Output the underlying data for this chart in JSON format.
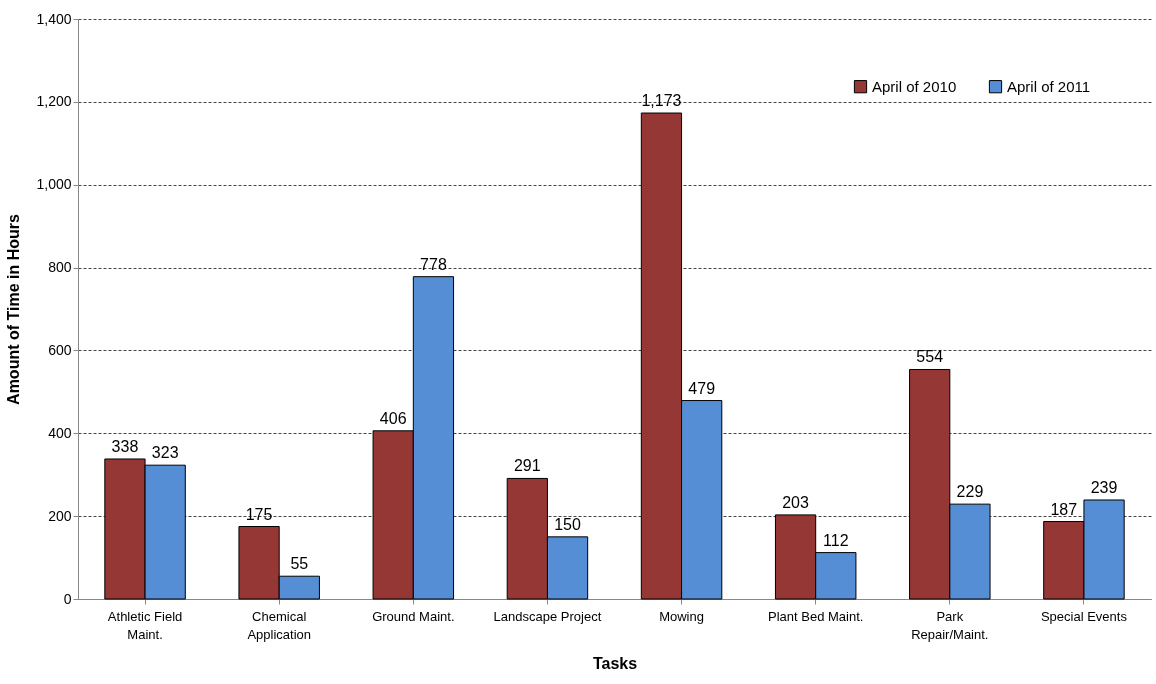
{
  "chart_data": {
    "type": "bar",
    "xlabel": "Tasks",
    "ylabel": "Amount of Time in Hours",
    "categories": [
      "Athletic Field Maint.",
      "Chemical Application",
      "Ground Maint.",
      "Landscape Project",
      "Mowing",
      "Plant Bed Maint.",
      "Park Repair/Maint.",
      "Special Events"
    ],
    "series": [
      {
        "name": "April of 2010",
        "color": "#953735",
        "values": [
          338,
          175,
          406,
          291,
          1173,
          203,
          554,
          187
        ],
        "value_labels": [
          "338",
          "175",
          "406",
          "291",
          "1,173",
          "203",
          "554",
          "187"
        ]
      },
      {
        "name": "April of 2011",
        "color": "#558ed5",
        "values": [
          323,
          55,
          778,
          150,
          479,
          112,
          229,
          239
        ],
        "value_labels": [
          "323",
          "55",
          "778",
          "150",
          "479",
          "112",
          "229",
          "239"
        ]
      }
    ],
    "ylim": [
      0,
      1400
    ],
    "yticks": [
      {
        "value": 0,
        "label": "0"
      },
      {
        "value": 200,
        "label": "200"
      },
      {
        "value": 400,
        "label": "400"
      },
      {
        "value": 600,
        "label": "600"
      },
      {
        "value": 800,
        "label": "800"
      },
      {
        "value": 1000,
        "label": "1,000"
      },
      {
        "value": 1200,
        "label": "1,200"
      },
      {
        "value": 1400,
        "label": "1,400"
      }
    ],
    "grid": "y",
    "legend": "top right"
  }
}
